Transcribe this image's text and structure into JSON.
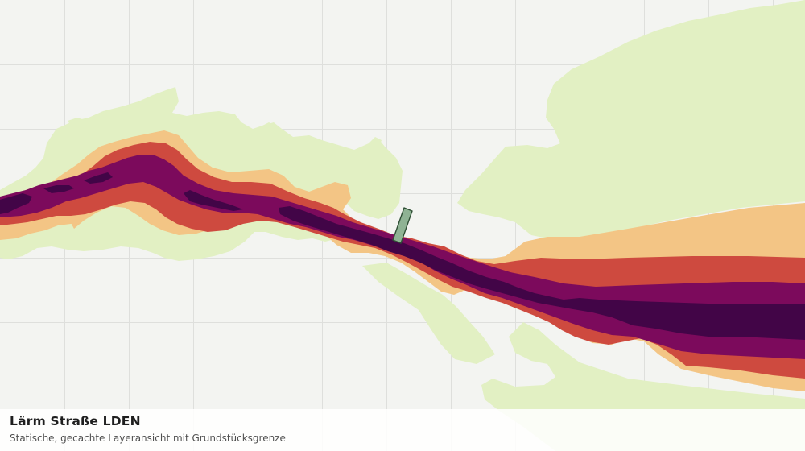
{
  "map": {
    "title": "Lärm Straße LDEN",
    "subtitle": "Statische, gecachte Layeransicht mit Grundstücksgrenze",
    "layer_name": "noise-road-lden",
    "basemap_color": "#f3f4f1",
    "grid_color": "#dedfdc",
    "noise_colors": {
      "level_1_lowest": "#e2f0c3",
      "level_2": "#f3c585",
      "level_3": "#ce4a3f",
      "level_4": "#7c0a5c",
      "level_5_highest": "#420547"
    },
    "parcel_boundary": {
      "fill": "#8fb394",
      "stroke": "#2f4f35"
    }
  }
}
